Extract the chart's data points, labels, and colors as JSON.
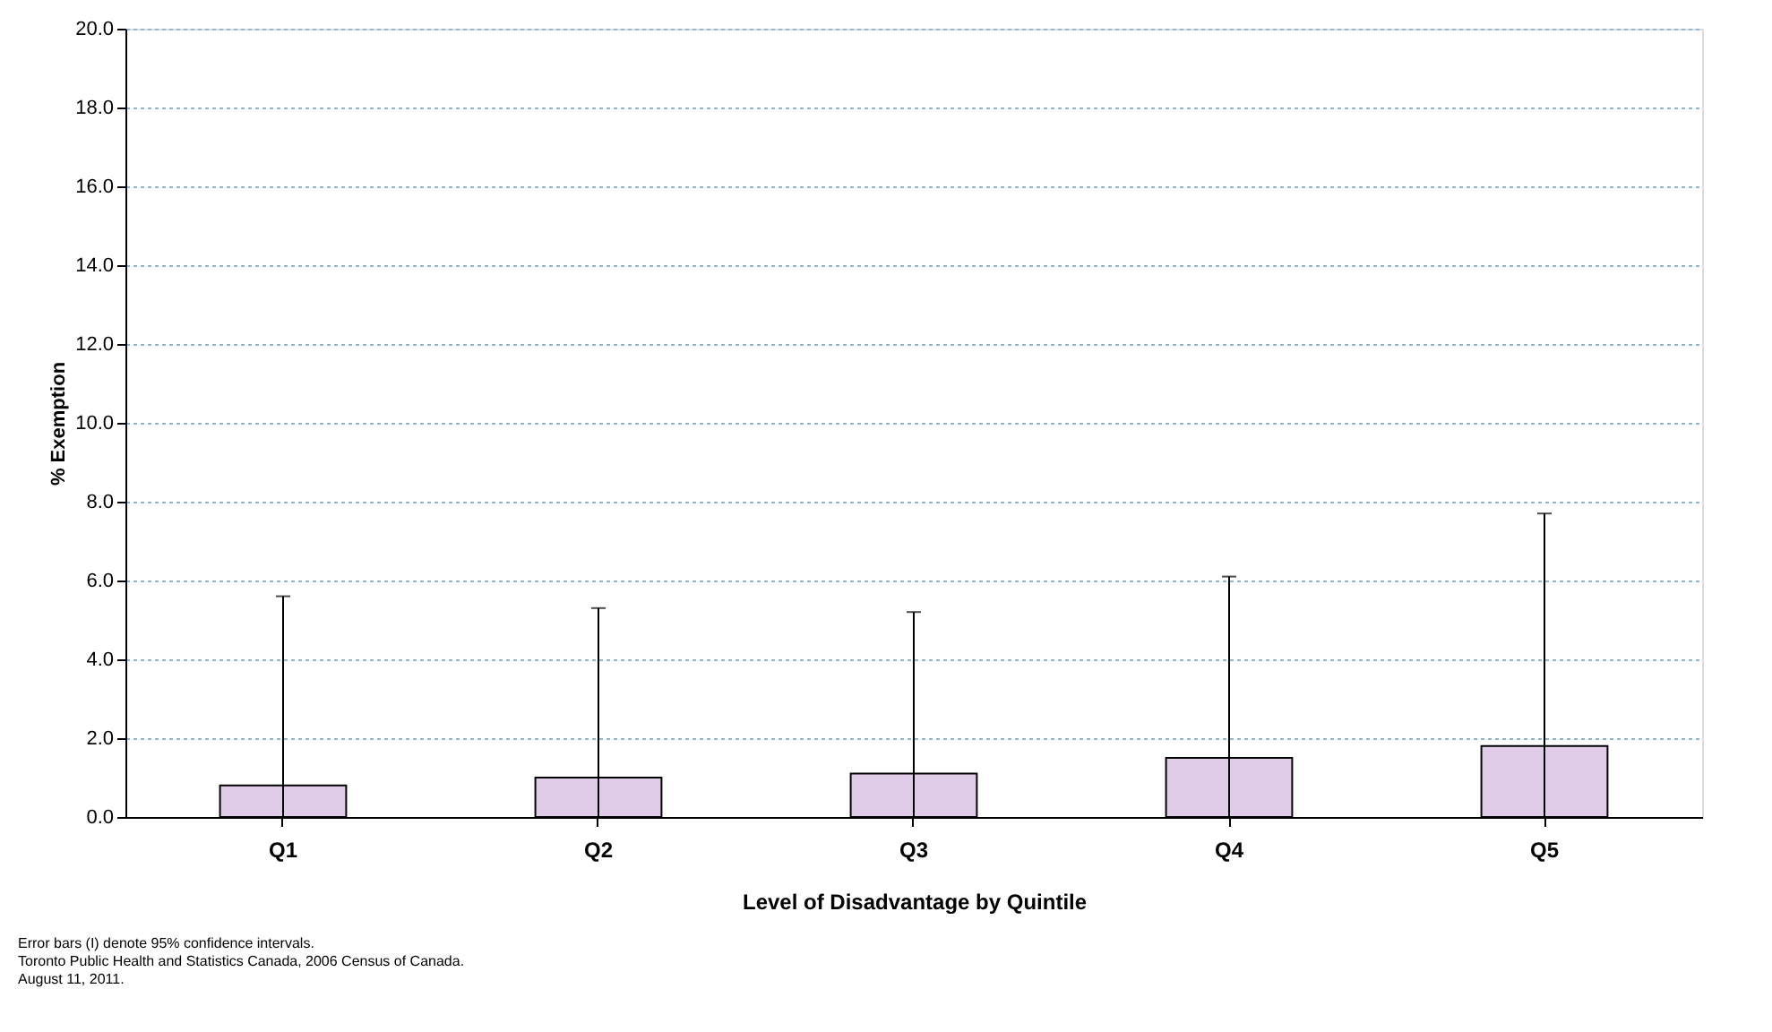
{
  "chart_data": {
    "type": "bar",
    "categories": [
      "Q1",
      "Q2",
      "Q3",
      "Q4",
      "Q5"
    ],
    "values": [
      0.8,
      1.0,
      1.1,
      1.5,
      1.8
    ],
    "errors": [
      [
        0,
        5.6
      ],
      [
        0,
        5.3
      ],
      [
        0,
        5.2
      ],
      [
        0,
        6.1
      ],
      [
        0,
        7.7
      ]
    ],
    "color": "#e0cce8",
    "xlabel": "Level of Disadvantage by Quintile",
    "ylabel": "% Exemption",
    "ylim": [
      0,
      20
    ],
    "yticks": [
      {
        "value": 0,
        "label": "0.0"
      },
      {
        "value": 2,
        "label": "2.0"
      },
      {
        "value": 4,
        "label": "4.0"
      },
      {
        "value": 6,
        "label": "6.0"
      },
      {
        "value": 8,
        "label": "8.0"
      },
      {
        "value": 10,
        "label": "10.0"
      },
      {
        "value": 12,
        "label": "12.0"
      },
      {
        "value": 14,
        "label": "14.0"
      },
      {
        "value": 16,
        "label": "16.0"
      },
      {
        "value": 18,
        "label": "18.0"
      },
      {
        "value": 20,
        "label": "20.0"
      }
    ],
    "grid": "y",
    "annotations": [
      "Error bars (I) denote 95% confidence intervals.",
      "Toronto Public Health and Statistics Canada, 2006 Census of Canada.",
      "August 11, 2011."
    ]
  }
}
